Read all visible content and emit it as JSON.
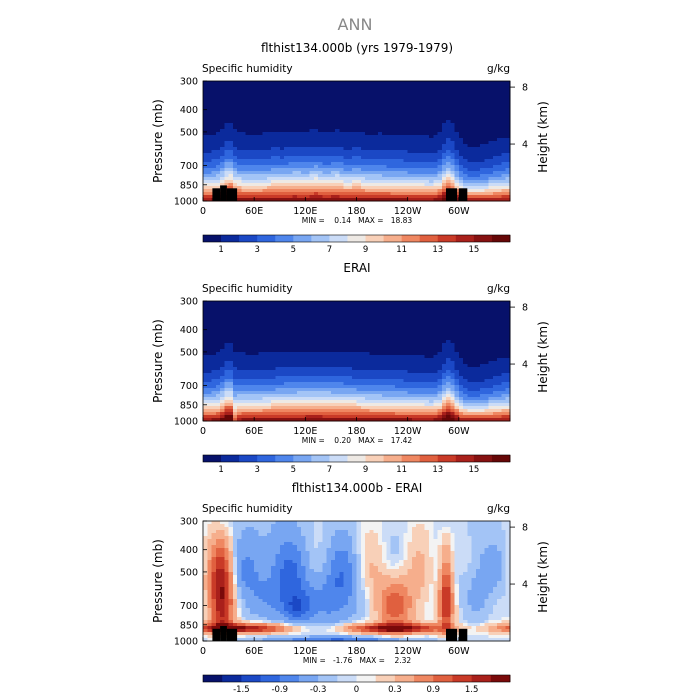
{
  "figure_title": "ANN",
  "chart_data": [
    {
      "type": "heatmap",
      "title": "flthist134.000b (yrs 1979-1979)",
      "corner_left": "Specific humidity",
      "corner_right": "g/kg",
      "ylabel": "Pressure (mb)",
      "ylabel_right": "Height (km)",
      "x_ticks": [
        "0",
        "60E",
        "120E",
        "180",
        "120W",
        "60W"
      ],
      "x_tick_values": [
        0,
        60,
        120,
        180,
        240,
        300
      ],
      "xlim": [
        0,
        360
      ],
      "y_ticks": [
        "300",
        "400",
        "500",
        "700",
        "850",
        "1000"
      ],
      "y_tick_values": [
        300,
        400,
        500,
        700,
        850,
        1000
      ],
      "ylim": [
        300,
        1000
      ],
      "y_scale": "log-pressure",
      "height_ticks": [
        "8",
        "4"
      ],
      "height_tick_values": [
        8,
        4
      ],
      "stats": "MIN =    0.14   MAX =   18.83",
      "min": 0.14,
      "max": 18.83,
      "colorbar": {
        "labels": [
          "1",
          "3",
          "5",
          "7",
          "9",
          "11",
          "13",
          "15"
        ],
        "levels": [
          1,
          2,
          3,
          4,
          5,
          6,
          7,
          8,
          9,
          10,
          11,
          12,
          13,
          14,
          15,
          16
        ],
        "labeled_levels": [
          1,
          3,
          5,
          7,
          9,
          11,
          13,
          15
        ]
      },
      "topography": true
    },
    {
      "type": "heatmap",
      "title": "ERAI",
      "corner_left": "Specific humidity",
      "corner_right": "g/kg",
      "ylabel": "Pressure (mb)",
      "ylabel_right": "Height (km)",
      "x_ticks": [
        "0",
        "60E",
        "120E",
        "180",
        "120W",
        "60W"
      ],
      "x_tick_values": [
        0,
        60,
        120,
        180,
        240,
        300
      ],
      "xlim": [
        0,
        360
      ],
      "y_ticks": [
        "300",
        "400",
        "500",
        "700",
        "850",
        "1000"
      ],
      "y_tick_values": [
        300,
        400,
        500,
        700,
        850,
        1000
      ],
      "ylim": [
        300,
        1000
      ],
      "y_scale": "log-pressure",
      "height_ticks": [
        "8",
        "4"
      ],
      "height_tick_values": [
        8,
        4
      ],
      "stats": "MIN =    0.20   MAX =   17.42",
      "min": 0.2,
      "max": 17.42,
      "colorbar": {
        "labels": [
          "1",
          "3",
          "5",
          "7",
          "9",
          "11",
          "13",
          "15"
        ],
        "levels": [
          1,
          2,
          3,
          4,
          5,
          6,
          7,
          8,
          9,
          10,
          11,
          12,
          13,
          14,
          15,
          16
        ],
        "labeled_levels": [
          1,
          3,
          5,
          7,
          9,
          11,
          13,
          15
        ]
      },
      "topography": false
    },
    {
      "type": "heatmap",
      "title": "flthist134.000b - ERAI",
      "corner_left": "Specific humidity",
      "corner_right": "g/kg",
      "ylabel": "Pressure (mb)",
      "ylabel_right": "Height (km)",
      "x_ticks": [
        "0",
        "60E",
        "120E",
        "180",
        "120W",
        "60W"
      ],
      "x_tick_values": [
        0,
        60,
        120,
        180,
        240,
        300
      ],
      "xlim": [
        0,
        360
      ],
      "y_ticks": [
        "300",
        "400",
        "500",
        "700",
        "850",
        "1000"
      ],
      "y_tick_values": [
        300,
        400,
        500,
        700,
        850,
        1000
      ],
      "ylim": [
        300,
        1000
      ],
      "y_scale": "log-pressure",
      "height_ticks": [
        "8",
        "4"
      ],
      "height_tick_values": [
        8,
        4
      ],
      "stats": "MIN =   -1.76   MAX =    2.32",
      "min": -1.76,
      "max": 2.32,
      "colorbar": {
        "labels": [
          "-1.5",
          "-0.9",
          "-0.3",
          "0",
          "0.3",
          "0.9",
          "1.5"
        ],
        "levels": [
          -1.8,
          -1.5,
          -1.2,
          -0.9,
          -0.6,
          -0.3,
          -0.1,
          0,
          0.1,
          0.3,
          0.6,
          0.9,
          1.2,
          1.5,
          1.8
        ],
        "labeled_levels": [
          -1.5,
          -0.9,
          -0.3,
          0,
          0.3,
          0.9,
          1.5
        ]
      },
      "topography": true
    }
  ],
  "colors": {
    "full": [
      "#07116a",
      "#0b2a9c",
      "#1b48c5",
      "#2f66de",
      "#4f86ec",
      "#78a6f2",
      "#a3c4f6",
      "#cbdcf7",
      "#eee9e4",
      "#f8d0b8",
      "#f6ae8c",
      "#ef8761",
      "#e0603f",
      "#c93a27",
      "#a9201b",
      "#861111",
      "#660707"
    ],
    "diff": [
      "#07116a",
      "#0b2a9c",
      "#1b48c5",
      "#2f66de",
      "#4f86ec",
      "#78a6f2",
      "#a3c4f6",
      "#cbdcf7",
      "#f3f3f3",
      "#f8d0b8",
      "#f6ae8c",
      "#ef8761",
      "#e0603f",
      "#c93a27",
      "#a9201b",
      "#7a0a0a"
    ],
    "topography": "#000000"
  }
}
